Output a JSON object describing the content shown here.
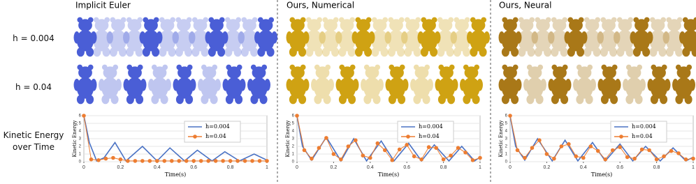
{
  "columns": [
    "Implicit Euler",
    "Ours, Numerical",
    "Ours, Neural"
  ],
  "rows": [
    "h = 0.004",
    "h = 0.04",
    "Kinetic Energy over Time"
  ],
  "chart_data": [
    {
      "type": "line",
      "xlabel": "Time(s)",
      "ylabel": "Kinetic Energy",
      "xlim": [
        0,
        1
      ],
      "xticks": [
        0,
        0.2,
        0.4,
        0.6,
        0.8,
        1
      ],
      "ylim": [
        0,
        6
      ],
      "yticks": [
        0,
        1,
        2,
        3,
        4,
        5,
        6
      ],
      "grid": true,
      "legend": "upper right",
      "series": [
        {
          "name": "h=0.004",
          "color": "#4a72c4",
          "marker": false,
          "x": [
            0,
            0.03,
            0.07,
            0.11,
            0.17,
            0.23,
            0.32,
            0.4,
            0.47,
            0.55,
            0.62,
            0.7,
            0.77,
            0.85,
            0.93,
            1
          ],
          "values": [
            6,
            2.5,
            0.1,
            0.5,
            2.5,
            0.1,
            2.0,
            0.1,
            1.8,
            0.1,
            1.5,
            0.1,
            1.3,
            0.1,
            1.0,
            0.2
          ]
        },
        {
          "name": "h=0.04",
          "color": "#ed7d31",
          "marker": true,
          "x": [
            0,
            0.04,
            0.08,
            0.12,
            0.16,
            0.2,
            0.24,
            0.28,
            0.32,
            0.36,
            0.4,
            0.44,
            0.48,
            0.52,
            0.56,
            0.6,
            0.64,
            0.68,
            0.72,
            0.76,
            0.8,
            0.84,
            0.88,
            0.92,
            0.96,
            1
          ],
          "values": [
            6,
            0.3,
            0.2,
            0.4,
            0.5,
            0.3,
            0.1,
            0.1,
            0.1,
            0.1,
            0.1,
            0.1,
            0.1,
            0.1,
            0.1,
            0.1,
            0.1,
            0.1,
            0.1,
            0.1,
            0.1,
            0.1,
            0.1,
            0.1,
            0.1,
            0.1
          ]
        }
      ]
    },
    {
      "type": "line",
      "xlabel": "Time(s)",
      "ylabel": "Kinetic Energy",
      "xlim": [
        0,
        1
      ],
      "xticks": [
        0,
        0.2,
        0.4,
        0.6,
        0.8,
        1
      ],
      "ylim": [
        0,
        6
      ],
      "yticks": [
        0,
        1,
        2,
        3,
        4,
        5,
        6
      ],
      "grid": true,
      "legend": "upper right",
      "series": [
        {
          "name": "h=0.004",
          "color": "#4a72c4",
          "marker": false,
          "x": [
            0,
            0.03,
            0.08,
            0.16,
            0.24,
            0.31,
            0.38,
            0.46,
            0.53,
            0.61,
            0.68,
            0.75,
            0.83,
            0.9,
            0.97,
            1
          ],
          "values": [
            6,
            2,
            0.2,
            3.2,
            0.1,
            3.0,
            0.1,
            2.7,
            0.1,
            2.4,
            0.1,
            2.2,
            0.1,
            2.0,
            0.1,
            0.6
          ]
        },
        {
          "name": "h=0.04",
          "color": "#ed7d31",
          "marker": true,
          "x": [
            0,
            0.04,
            0.08,
            0.12,
            0.16,
            0.2,
            0.24,
            0.28,
            0.32,
            0.36,
            0.4,
            0.44,
            0.48,
            0.52,
            0.56,
            0.6,
            0.64,
            0.68,
            0.72,
            0.76,
            0.8,
            0.84,
            0.88,
            0.92,
            0.96,
            1
          ],
          "values": [
            6,
            1.5,
            0.4,
            1.8,
            3.1,
            1.0,
            0.3,
            2.0,
            2.8,
            0.8,
            0.5,
            2.4,
            1.5,
            0.2,
            1.6,
            2.2,
            0.7,
            0.3,
            1.9,
            1.8,
            0.3,
            0.8,
            1.8,
            1.2,
            0.2,
            0.5
          ]
        }
      ]
    },
    {
      "type": "line",
      "xlabel": "Time(s)",
      "ylabel": "Kinetic Energy",
      "xlim": [
        0,
        1
      ],
      "xticks": [
        0,
        0.2,
        0.4,
        0.6,
        0.8,
        1
      ],
      "ylim": [
        0,
        6
      ],
      "yticks": [
        0,
        1,
        2,
        3,
        4,
        5,
        6
      ],
      "grid": true,
      "legend": "upper right",
      "series": [
        {
          "name": "h=0.004",
          "color": "#4a72c4",
          "marker": false,
          "x": [
            0,
            0.03,
            0.08,
            0.15,
            0.23,
            0.3,
            0.37,
            0.45,
            0.52,
            0.6,
            0.67,
            0.74,
            0.82,
            0.89,
            0.96,
            1
          ],
          "values": [
            6,
            2,
            0.2,
            3.0,
            0.1,
            2.8,
            0.1,
            2.5,
            0.1,
            2.3,
            0.1,
            2.0,
            0.1,
            1.8,
            0.1,
            0.6
          ]
        },
        {
          "name": "h=0.04",
          "color": "#ed7d31",
          "marker": true,
          "x": [
            0,
            0.04,
            0.08,
            0.12,
            0.16,
            0.2,
            0.24,
            0.28,
            0.32,
            0.36,
            0.4,
            0.44,
            0.48,
            0.52,
            0.56,
            0.6,
            0.64,
            0.68,
            0.72,
            0.76,
            0.8,
            0.84,
            0.88,
            0.92,
            0.96,
            1
          ],
          "values": [
            6,
            1.5,
            0.5,
            1.8,
            2.8,
            1.0,
            0.4,
            2.0,
            2.3,
            0.7,
            0.5,
            2.0,
            1.4,
            0.3,
            1.5,
            1.9,
            0.6,
            0.4,
            1.6,
            1.5,
            0.3,
            0.7,
            1.4,
            1.1,
            0.3,
            0.4
          ]
        }
      ]
    }
  ]
}
